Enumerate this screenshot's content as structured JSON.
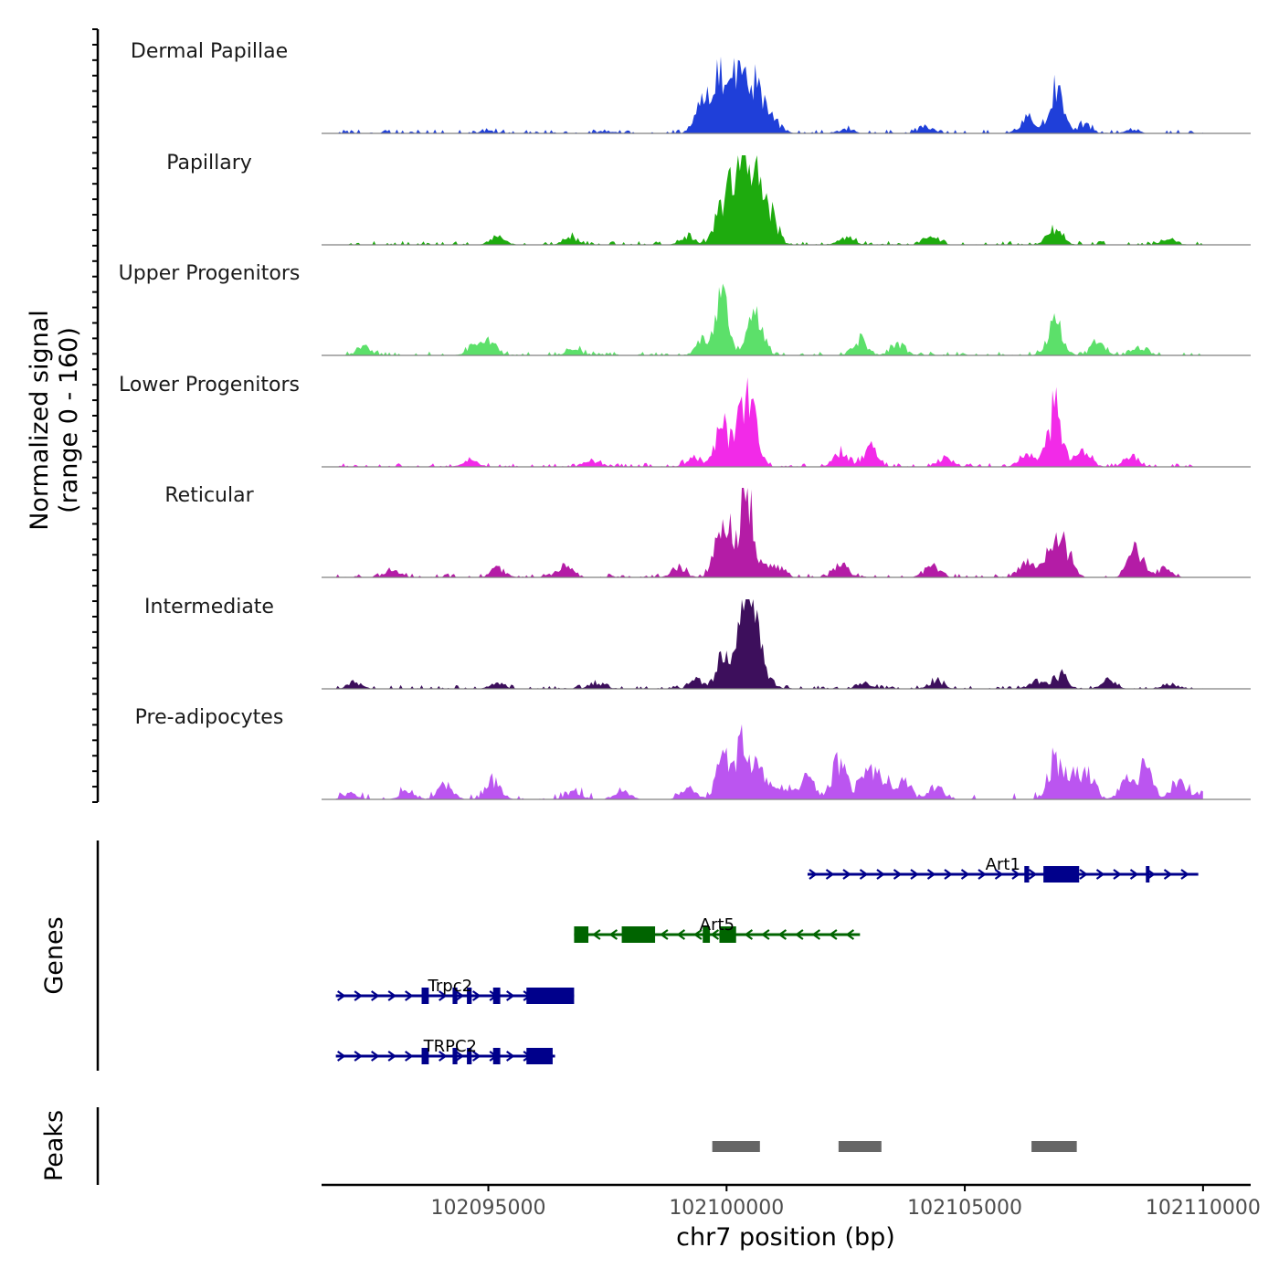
{
  "chart_data": [
    {
      "type": "area",
      "panel": "coverage",
      "ylabel": [
        "Normalized signal",
        "(range 0 - 160)"
      ],
      "ylim": [
        0,
        160
      ],
      "xlim": [
        102091500,
        102111000
      ],
      "tracks": [
        {
          "name": "Dermal Papillae",
          "color": "#1f3fd9",
          "peaks": [
            [
              102095000,
              4
            ],
            [
              102097500,
              4
            ],
            [
              102099500,
              45
            ],
            [
              102099850,
              95
            ],
            [
              102100300,
              150
            ],
            [
              102100650,
              80
            ],
            [
              102101000,
              20
            ],
            [
              102102500,
              8
            ],
            [
              102104200,
              10
            ],
            [
              102106300,
              25
            ],
            [
              102106900,
              75
            ],
            [
              102107500,
              15
            ],
            [
              102108500,
              6
            ]
          ]
        },
        {
          "name": "Papillary",
          "color": "#1eab0e",
          "peaks": [
            [
              102095200,
              15
            ],
            [
              102096700,
              15
            ],
            [
              102099200,
              15
            ],
            [
              102099900,
              75
            ],
            [
              102100280,
              170
            ],
            [
              102100620,
              110
            ],
            [
              102100920,
              50
            ],
            [
              102102500,
              15
            ],
            [
              102104300,
              15
            ],
            [
              102106900,
              30
            ],
            [
              102109300,
              8
            ]
          ]
        },
        {
          "name": "Upper Progenitors",
          "color": "#5ce06a",
          "peaks": [
            [
              102092400,
              15
            ],
            [
              102094700,
              15
            ],
            [
              102095000,
              20
            ],
            [
              102096800,
              12
            ],
            [
              102099500,
              25
            ],
            [
              102099900,
              90
            ],
            [
              102100600,
              75
            ],
            [
              102102800,
              30
            ],
            [
              102103600,
              20
            ],
            [
              102106900,
              55
            ],
            [
              102107800,
              20
            ],
            [
              102108700,
              15
            ]
          ]
        },
        {
          "name": "Lower Progenitors",
          "color": "#f22ae8",
          "peaks": [
            [
              102094600,
              12
            ],
            [
              102097200,
              12
            ],
            [
              102099300,
              15
            ],
            [
              102099900,
              70
            ],
            [
              102100350,
              60
            ],
            [
              102100500,
              95
            ],
            [
              102102400,
              30
            ],
            [
              102103000,
              35
            ],
            [
              102104600,
              15
            ],
            [
              102106300,
              25
            ],
            [
              102106900,
              100
            ],
            [
              102107500,
              30
            ],
            [
              102108500,
              20
            ]
          ]
        },
        {
          "name": "Reticular",
          "color": "#b41ca6",
          "peaks": [
            [
              102093000,
              12
            ],
            [
              102095200,
              15
            ],
            [
              102096600,
              20
            ],
            [
              102099000,
              15
            ],
            [
              102099930,
              115
            ],
            [
              102100420,
              150
            ],
            [
              102101000,
              25
            ],
            [
              102102400,
              25
            ],
            [
              102104300,
              20
            ],
            [
              102106300,
              25
            ],
            [
              102106800,
              40
            ],
            [
              102107100,
              55
            ],
            [
              102108600,
              50
            ],
            [
              102109200,
              15
            ]
          ]
        },
        {
          "name": "Intermediate",
          "color": "#3d0f5c",
          "peaks": [
            [
              102092200,
              10
            ],
            [
              102095200,
              10
            ],
            [
              102097300,
              10
            ],
            [
              102099400,
              15
            ],
            [
              102099950,
              60
            ],
            [
              102100350,
              90
            ],
            [
              102100500,
              100
            ],
            [
              102100800,
              30
            ],
            [
              102102900,
              12
            ],
            [
              102104400,
              15
            ],
            [
              102106500,
              15
            ],
            [
              102107000,
              25
            ],
            [
              102108000,
              15
            ],
            [
              102109300,
              10
            ]
          ]
        },
        {
          "name": "Pre-adipocytes",
          "color": "#bb55f0",
          "peaks": [
            [
              102092100,
              10
            ],
            [
              102093300,
              15
            ],
            [
              102094100,
              25
            ],
            [
              102095100,
              35
            ],
            [
              102096800,
              15
            ],
            [
              102097800,
              20
            ],
            [
              102099200,
              25
            ],
            [
              102099960,
              75
            ],
            [
              102100300,
              80
            ],
            [
              102100700,
              50
            ],
            [
              102101200,
              25
            ],
            [
              102101700,
              35
            ],
            [
              102102350,
              70
            ],
            [
              102102900,
              35
            ],
            [
              102103200,
              45
            ],
            [
              102103700,
              40
            ],
            [
              102104400,
              25
            ],
            [
              102106900,
              70
            ],
            [
              102107300,
              45
            ],
            [
              102107600,
              35
            ],
            [
              102108400,
              35
            ],
            [
              102108800,
              55
            ],
            [
              102109500,
              35
            ],
            [
              102110000,
              10
            ]
          ]
        }
      ]
    },
    {
      "type": "gene-track",
      "panel": "genes",
      "ylabel": "Genes",
      "genes": [
        {
          "name": "Art1",
          "strand": "+",
          "color": "#00008b",
          "start": 102101700,
          "end": 102109900,
          "exons": [
            [
              102106250,
              102106350
            ],
            [
              102106650,
              102107400
            ],
            [
              102108800,
              102108830
            ]
          ]
        },
        {
          "name": "Art5",
          "strand": "-",
          "color": "#006400",
          "start": 102096800,
          "end": 102102800,
          "exons": [
            [
              102096800,
              102097100
            ],
            [
              102097800,
              102098500
            ],
            [
              102099500,
              102099650
            ],
            [
              102099850,
              102100200
            ]
          ]
        },
        {
          "name": "Trpc2",
          "strand": "+",
          "color": "#00008b",
          "start": 102091800,
          "end": 102096800,
          "exons": [
            [
              102093600,
              102093750
            ],
            [
              102094250,
              102094350
            ],
            [
              102094550,
              102094650
            ],
            [
              102095100,
              102095250
            ],
            [
              102095800,
              102096800
            ]
          ]
        },
        {
          "name": "TRPC2",
          "strand": "+",
          "color": "#00008b",
          "start": 102091800,
          "end": 102096400,
          "exons": [
            [
              102093600,
              102093750
            ],
            [
              102094250,
              102094350
            ],
            [
              102094550,
              102094650
            ],
            [
              102095100,
              102095250
            ],
            [
              102095800,
              102096350
            ]
          ]
        }
      ]
    },
    {
      "type": "interval",
      "panel": "peaks",
      "ylabel": "Peaks",
      "color": "#666666",
      "peaks": [
        [
          102099700,
          102100700
        ],
        [
          102102350,
          102103250
        ],
        [
          102106400,
          102107350
        ]
      ]
    }
  ],
  "xaxis": {
    "label": "chr7 position (bp)",
    "ticks": [
      102095000,
      102100000,
      102105000,
      102110000
    ],
    "tick_labels": [
      "102095000",
      "102100000",
      "102105000",
      "102110000"
    ]
  }
}
